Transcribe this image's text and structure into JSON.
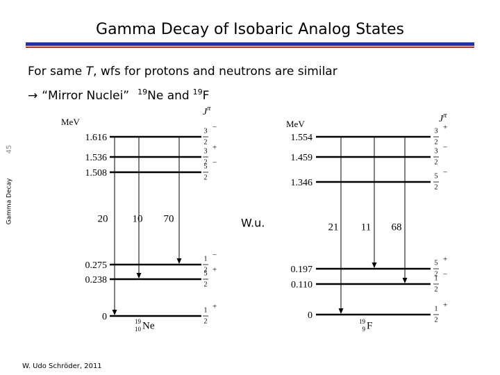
{
  "header": {
    "title": "Gamma Decay of Isobaric Analog States"
  },
  "line1": {
    "before": "For same ",
    "italic": "T",
    "after": ", wfs for protons and neutrons are similar"
  },
  "line2": {
    "arrow": "→",
    "text": "“Mirror Nuclei”",
    "mass1": "19",
    "el1": "Ne and",
    "mass2": "19",
    "el2": "F"
  },
  "sidebar": {
    "topic": "Gamma Decay",
    "page": "45"
  },
  "footer": "W. Udo Schröder, 2011",
  "unit_note": "W.u.",
  "diagrams": [
    {
      "unit": "MeV",
      "spin_header": "J",
      "parity_header": "π",
      "levels": [
        {
          "energy": "1.616",
          "num": "3",
          "den": "2",
          "parity": "−"
        },
        {
          "energy": "1.536",
          "num": "3",
          "den": "2",
          "parity": "+"
        },
        {
          "energy": "1.508",
          "num": "5",
          "den": "2",
          "parity": "−"
        },
        {
          "energy": "0.275",
          "num": "1",
          "den": "2",
          "parity": "−"
        },
        {
          "energy": "0.238",
          "num": "5",
          "den": "2",
          "parity": "+"
        },
        {
          "energy": "0",
          "num": "1",
          "den": "2",
          "parity": "+"
        }
      ],
      "transitions": [
        "20",
        "10",
        "70"
      ],
      "nucleus": {
        "mass": "19",
        "charge": "10",
        "symbol": "Ne"
      }
    },
    {
      "unit": "MeV",
      "spin_header": "J",
      "parity_header": "π",
      "levels": [
        {
          "energy": "1.554",
          "num": "3",
          "den": "2",
          "parity": "+"
        },
        {
          "energy": "1.459",
          "num": "3",
          "den": "2",
          "parity": "−"
        },
        {
          "energy": "1.346",
          "num": "5",
          "den": "2",
          "parity": "−"
        },
        {
          "energy": "0.197",
          "num": "5",
          "den": "2",
          "parity": "+"
        },
        {
          "energy": "0.110",
          "num": "1",
          "den": "2",
          "parity": "−"
        },
        {
          "energy": "0",
          "num": "1",
          "den": "2",
          "parity": "+"
        }
      ],
      "transitions": [
        "21",
        "11",
        "68"
      ],
      "nucleus": {
        "mass": "19",
        "charge": "9",
        "symbol": "F"
      }
    }
  ]
}
